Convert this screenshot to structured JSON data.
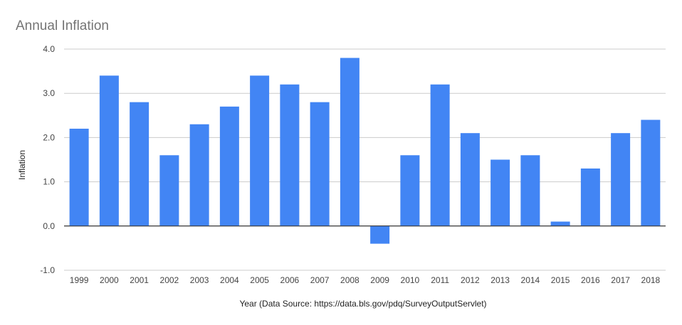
{
  "chart_data": {
    "type": "bar",
    "title": "Annual Inflation",
    "xlabel": "Year (Data Source: https://data.bls.gov/pdq/SurveyOutputServlet)",
    "ylabel": "Inflation",
    "categories": [
      "1999",
      "2000",
      "2001",
      "2002",
      "2003",
      "2004",
      "2005",
      "2006",
      "2007",
      "2008",
      "2009",
      "2010",
      "2011",
      "2012",
      "2013",
      "2014",
      "2015",
      "2016",
      "2017",
      "2018"
    ],
    "values": [
      2.2,
      3.4,
      2.8,
      1.6,
      2.3,
      2.7,
      3.4,
      3.2,
      2.8,
      3.8,
      -0.4,
      1.6,
      3.2,
      2.1,
      1.5,
      1.6,
      0.1,
      1.3,
      2.1,
      2.4
    ],
    "ylim": [
      -1.0,
      4.0
    ],
    "yticks": [
      "-1.0",
      "0.0",
      "1.0",
      "2.0",
      "3.0",
      "4.0"
    ],
    "grid": true,
    "legend": "none",
    "bar_color": "#4285f4"
  }
}
